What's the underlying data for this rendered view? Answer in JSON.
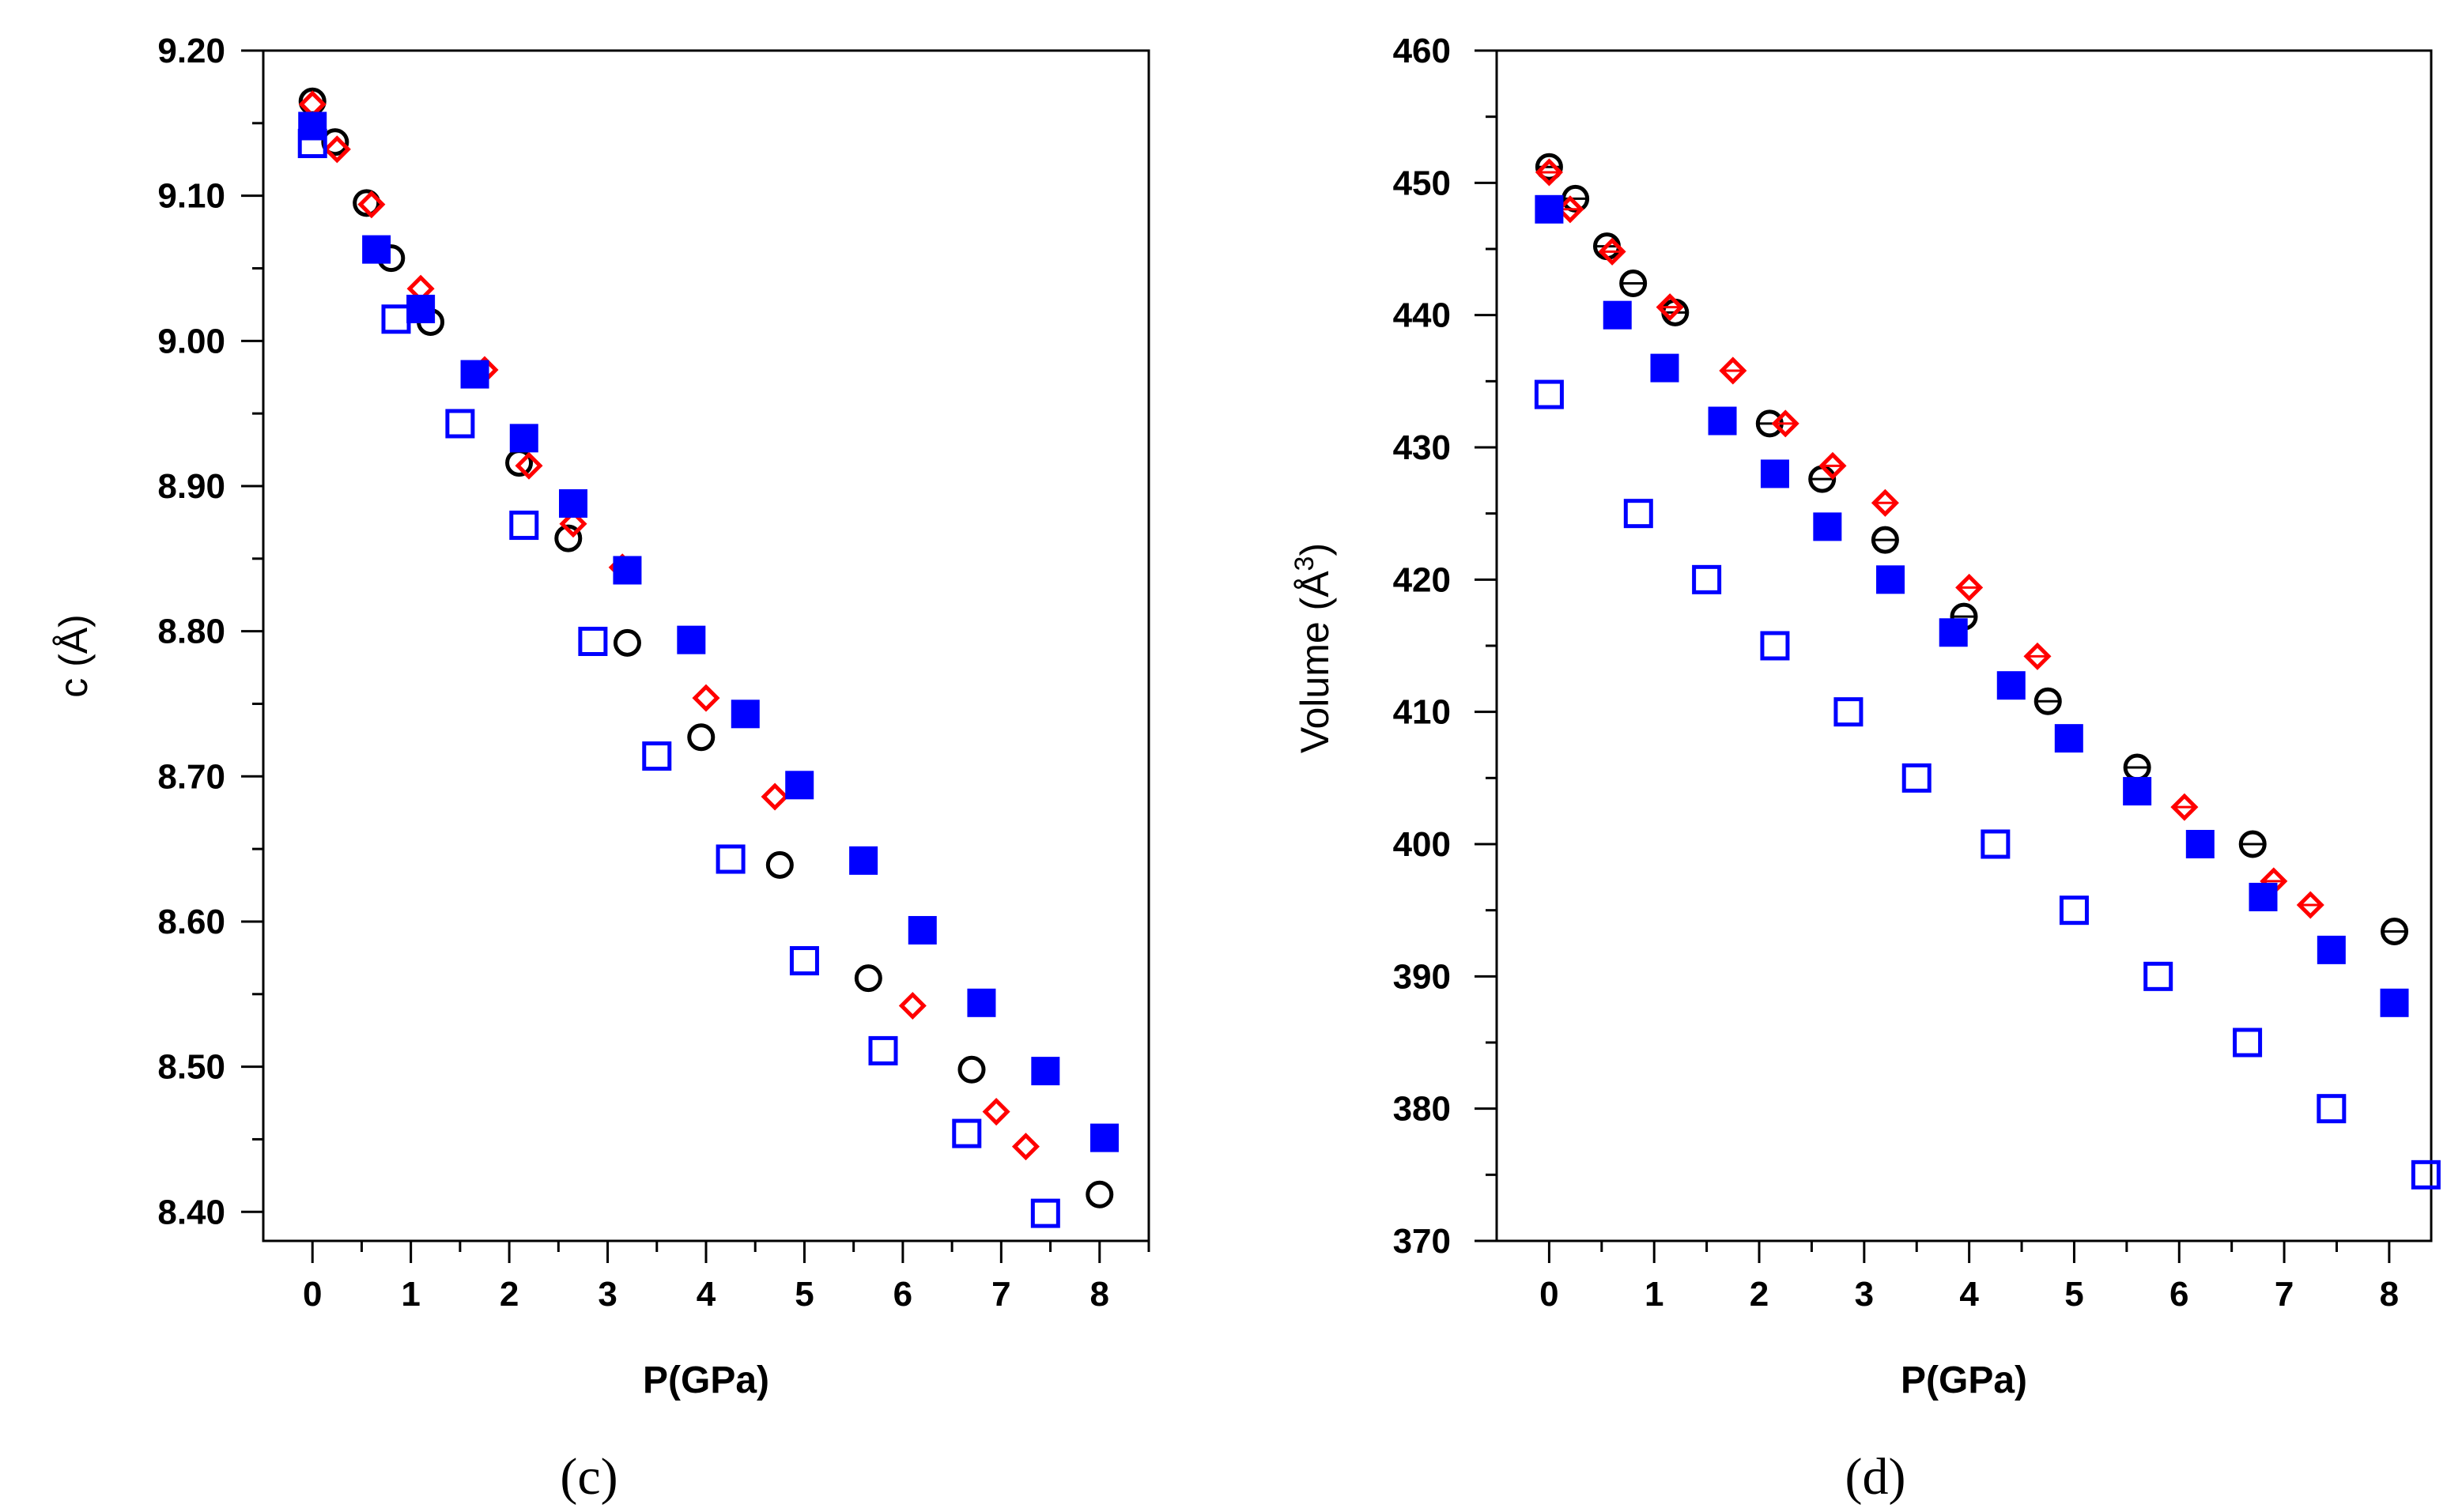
{
  "chart_data": [
    {
      "id": "c",
      "type": "scatter",
      "caption": "(c)",
      "xlabel": "P(GPa)",
      "ylabel_base": "c",
      "ylabel_unit": "(Å)",
      "xticks": [
        "0",
        "1",
        "2",
        "3",
        "4",
        "5",
        "6",
        "7",
        "8"
      ],
      "yticks": [
        "8.40",
        "8.50",
        "8.60",
        "8.70",
        "8.80",
        "8.90",
        "9.00",
        "9.10",
        "9.20"
      ],
      "xlim": [
        -0.5,
        8.5
      ],
      "ylim": [
        8.38,
        9.2
      ],
      "series": [
        {
          "name": "black open circles",
          "marker": "circle",
          "color": "#000000",
          "x": [
            0,
            0.23,
            0.55,
            0.8,
            1.2,
            2.1,
            2.6,
            3.2,
            3.95,
            4.75,
            5.65,
            6.7,
            8.0
          ],
          "y": [
            9.165,
            9.137,
            9.095,
            9.057,
            9.013,
            8.916,
            8.864,
            8.792,
            8.727,
            8.639,
            8.561,
            8.498,
            8.412
          ]
        },
        {
          "name": "red open diamonds",
          "marker": "diamond",
          "color": "#ff0000",
          "x": [
            0,
            0.25,
            0.6,
            1.1,
            1.75,
            2.2,
            2.65,
            3.15,
            4.0,
            4.7,
            6.1,
            6.95,
            7.25
          ],
          "y": [
            9.163,
            9.132,
            9.094,
            9.036,
            8.98,
            8.914,
            8.874,
            8.844,
            8.754,
            8.686,
            8.542,
            8.469,
            8.445
          ]
        },
        {
          "name": "blue filled squares",
          "marker": "square-filled",
          "color": "#0000ff",
          "x": [
            0,
            0.65,
            1.1,
            1.65,
            2.15,
            2.65,
            3.2,
            3.85,
            4.4,
            4.95,
            5.6,
            6.2,
            6.8,
            7.45,
            8.05
          ],
          "y": [
            9.148,
            9.063,
            9.022,
            8.977,
            8.933,
            8.888,
            8.842,
            8.794,
            8.743,
            8.694,
            8.642,
            8.594,
            8.544,
            8.497,
            8.451
          ]
        },
        {
          "name": "blue open squares",
          "marker": "square-open",
          "color": "#0000ff",
          "x": [
            0,
            0.85,
            1.5,
            2.15,
            2.85,
            3.5,
            4.25,
            5.0,
            5.8,
            6.65,
            7.45
          ],
          "y": [
            9.136,
            9.015,
            8.943,
            8.873,
            8.793,
            8.714,
            8.643,
            8.573,
            8.511,
            8.454,
            8.399
          ]
        }
      ]
    },
    {
      "id": "d",
      "type": "scatter",
      "caption": "(d)",
      "xlabel": "P(GPa)",
      "ylabel_base": "Volume (Å",
      "ylabel_sup": "3",
      "ylabel_close": ")",
      "xticks": [
        "0",
        "1",
        "2",
        "3",
        "4",
        "5",
        "6",
        "7",
        "8"
      ],
      "yticks": [
        "370",
        "380",
        "390",
        "400",
        "410",
        "420",
        "430",
        "440",
        "450",
        "460"
      ],
      "xlim": [
        -0.5,
        8.4
      ],
      "ylim": [
        370,
        460
      ],
      "series": [
        {
          "name": "black circles with error bars",
          "marker": "circle-bar",
          "color": "#000000",
          "x": [
            0,
            0.25,
            0.55,
            0.8,
            1.2,
            2.1,
            2.6,
            3.2,
            3.95,
            4.75,
            5.6,
            6.7,
            8.05
          ],
          "y": [
            451.2,
            448.8,
            445.2,
            442.4,
            440.2,
            431.8,
            427.6,
            423.0,
            417.2,
            410.8,
            405.8,
            400.0,
            393.4
          ]
        },
        {
          "name": "red diamonds with error bars",
          "marker": "diamond-bar",
          "color": "#ff0000",
          "x": [
            0,
            0.2,
            0.6,
            1.15,
            1.75,
            2.25,
            2.7,
            3.2,
            4.0,
            4.65,
            6.05,
            6.9,
            7.25
          ],
          "y": [
            450.8,
            448.0,
            444.8,
            440.6,
            435.8,
            431.8,
            428.6,
            425.8,
            419.4,
            414.2,
            402.8,
            397.2,
            395.4
          ]
        },
        {
          "name": "blue filled squares",
          "marker": "square-filled",
          "color": "#0000ff",
          "x": [
            0,
            0.65,
            1.1,
            1.65,
            2.15,
            2.65,
            3.25,
            3.85,
            4.4,
            4.95,
            5.6,
            6.2,
            6.8,
            7.45,
            8.05
          ],
          "y": [
            448.0,
            440.0,
            436.0,
            432.0,
            428.0,
            424.0,
            420.0,
            416.0,
            412.0,
            408.0,
            404.0,
            400.0,
            396.0,
            392.0,
            388.0
          ]
        },
        {
          "name": "blue open squares",
          "marker": "square-open",
          "color": "#0000ff",
          "x": [
            0,
            0.85,
            1.5,
            2.15,
            2.85,
            3.5,
            4.25,
            5.0,
            5.8,
            6.65,
            7.45,
            8.35
          ],
          "y": [
            434.0,
            425.0,
            420.0,
            415.0,
            410.0,
            405.0,
            400.0,
            395.0,
            390.0,
            385.0,
            380.0,
            375.0
          ]
        }
      ]
    }
  ]
}
